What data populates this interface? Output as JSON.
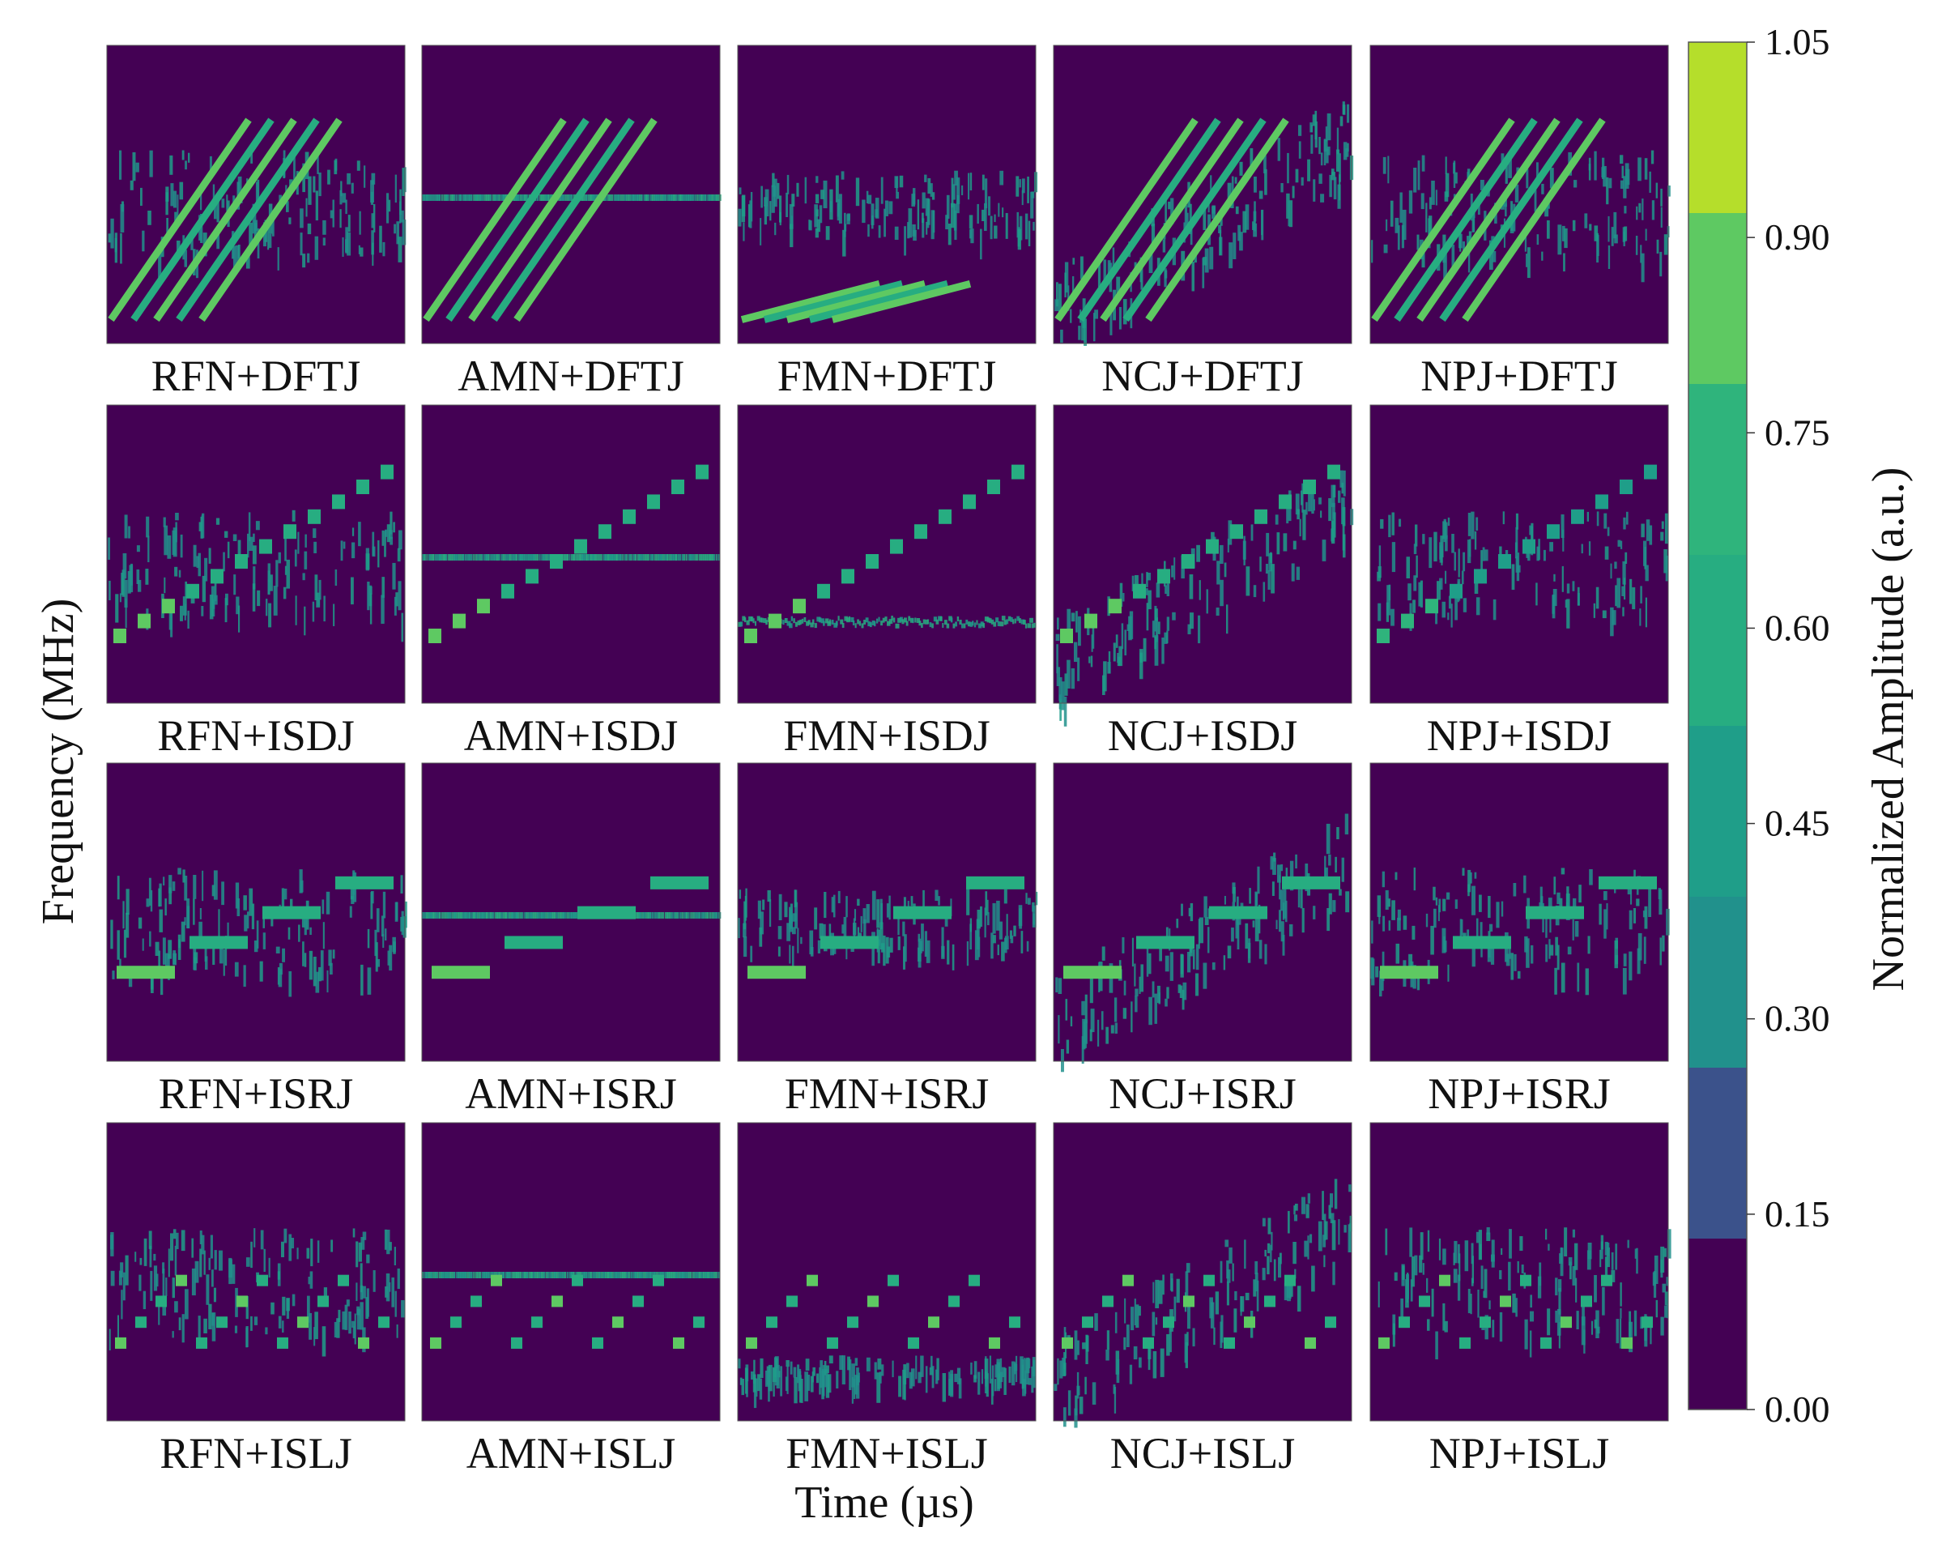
{
  "chart_data": {
    "type": "heatmap",
    "title": "",
    "xlabel": "Time (µs)",
    "ylabel": "Frequency (MHz)",
    "rows": [
      "DFTJ",
      "ISDJ",
      "ISRJ",
      "ISLJ"
    ],
    "columns": [
      "RFN",
      "AMN",
      "FMN",
      "NCJ",
      "NPJ"
    ],
    "panels": [
      [
        {
          "label": "RFN+DFTJ",
          "background_noise": "broadband",
          "pattern": "dftj",
          "peak": 0.9
        },
        {
          "label": "AMN+DFTJ",
          "background_noise": "tone",
          "pattern": "dftj",
          "peak": 0.9
        },
        {
          "label": "FMN+DFTJ",
          "background_noise": "fm_band",
          "pattern": "dftj_flat",
          "peak": 1.0
        },
        {
          "label": "NCJ+DFTJ",
          "background_noise": "diag_band",
          "pattern": "dftj",
          "peak": 0.9
        },
        {
          "label": "NPJ+DFTJ",
          "background_noise": "broadband",
          "pattern": "dftj",
          "peak": 0.95
        }
      ],
      [
        {
          "label": "RFN+ISDJ",
          "background_noise": "broadband",
          "pattern": "isdj",
          "peak": 0.95
        },
        {
          "label": "AMN+ISDJ",
          "background_noise": "tone",
          "pattern": "isdj",
          "peak": 0.9
        },
        {
          "label": "FMN+ISDJ",
          "background_noise": "fm_line",
          "pattern": "isdj",
          "peak": 0.9
        },
        {
          "label": "NCJ+ISDJ",
          "background_noise": "diag_band",
          "pattern": "isdj",
          "peak": 0.9
        },
        {
          "label": "NPJ+ISDJ",
          "background_noise": "broadband",
          "pattern": "isdj",
          "peak": 0.85
        }
      ],
      [
        {
          "label": "RFN+ISRJ",
          "background_noise": "broadband",
          "pattern": "isrj",
          "peak": 0.95
        },
        {
          "label": "AMN+ISRJ",
          "background_noise": "tone",
          "pattern": "isrj",
          "peak": 0.9
        },
        {
          "label": "FMN+ISRJ",
          "background_noise": "fm_band",
          "pattern": "isrj",
          "peak": 0.95
        },
        {
          "label": "NCJ+ISRJ",
          "background_noise": "diag_band",
          "pattern": "isrj",
          "peak": 0.95
        },
        {
          "label": "NPJ+ISRJ",
          "background_noise": "broadband",
          "pattern": "isrj",
          "peak": 0.9
        }
      ],
      [
        {
          "label": "RFN+ISLJ",
          "background_noise": "broadband",
          "pattern": "islj",
          "peak": 0.9
        },
        {
          "label": "AMN+ISLJ",
          "background_noise": "tone",
          "pattern": "islj",
          "peak": 0.9
        },
        {
          "label": "FMN+ISLJ",
          "background_noise": "fm_low",
          "pattern": "islj",
          "peak": 0.9
        },
        {
          "label": "NCJ+ISLJ",
          "background_noise": "diag_band",
          "pattern": "islj",
          "peak": 0.9
        },
        {
          "label": "NPJ+ISLJ",
          "background_noise": "broadband",
          "pattern": "islj",
          "peak": 0.9
        }
      ]
    ],
    "colorbar": {
      "label": "Normalized Amplitude (a.u.)",
      "range": [
        0.0,
        1.05
      ],
      "ticks": [
        "0.00",
        "0.15",
        "0.30",
        "0.45",
        "0.60",
        "0.75",
        "0.90",
        "1.05"
      ],
      "colors": [
        "#440154",
        "#3b528b",
        "#21918c",
        "#1f9e89",
        "#27ad81",
        "#2fb47c",
        "#5ec962",
        "#b5de2b"
      ],
      "colormap": "viridis"
    },
    "grid": false,
    "legend": "colorbar-right"
  }
}
